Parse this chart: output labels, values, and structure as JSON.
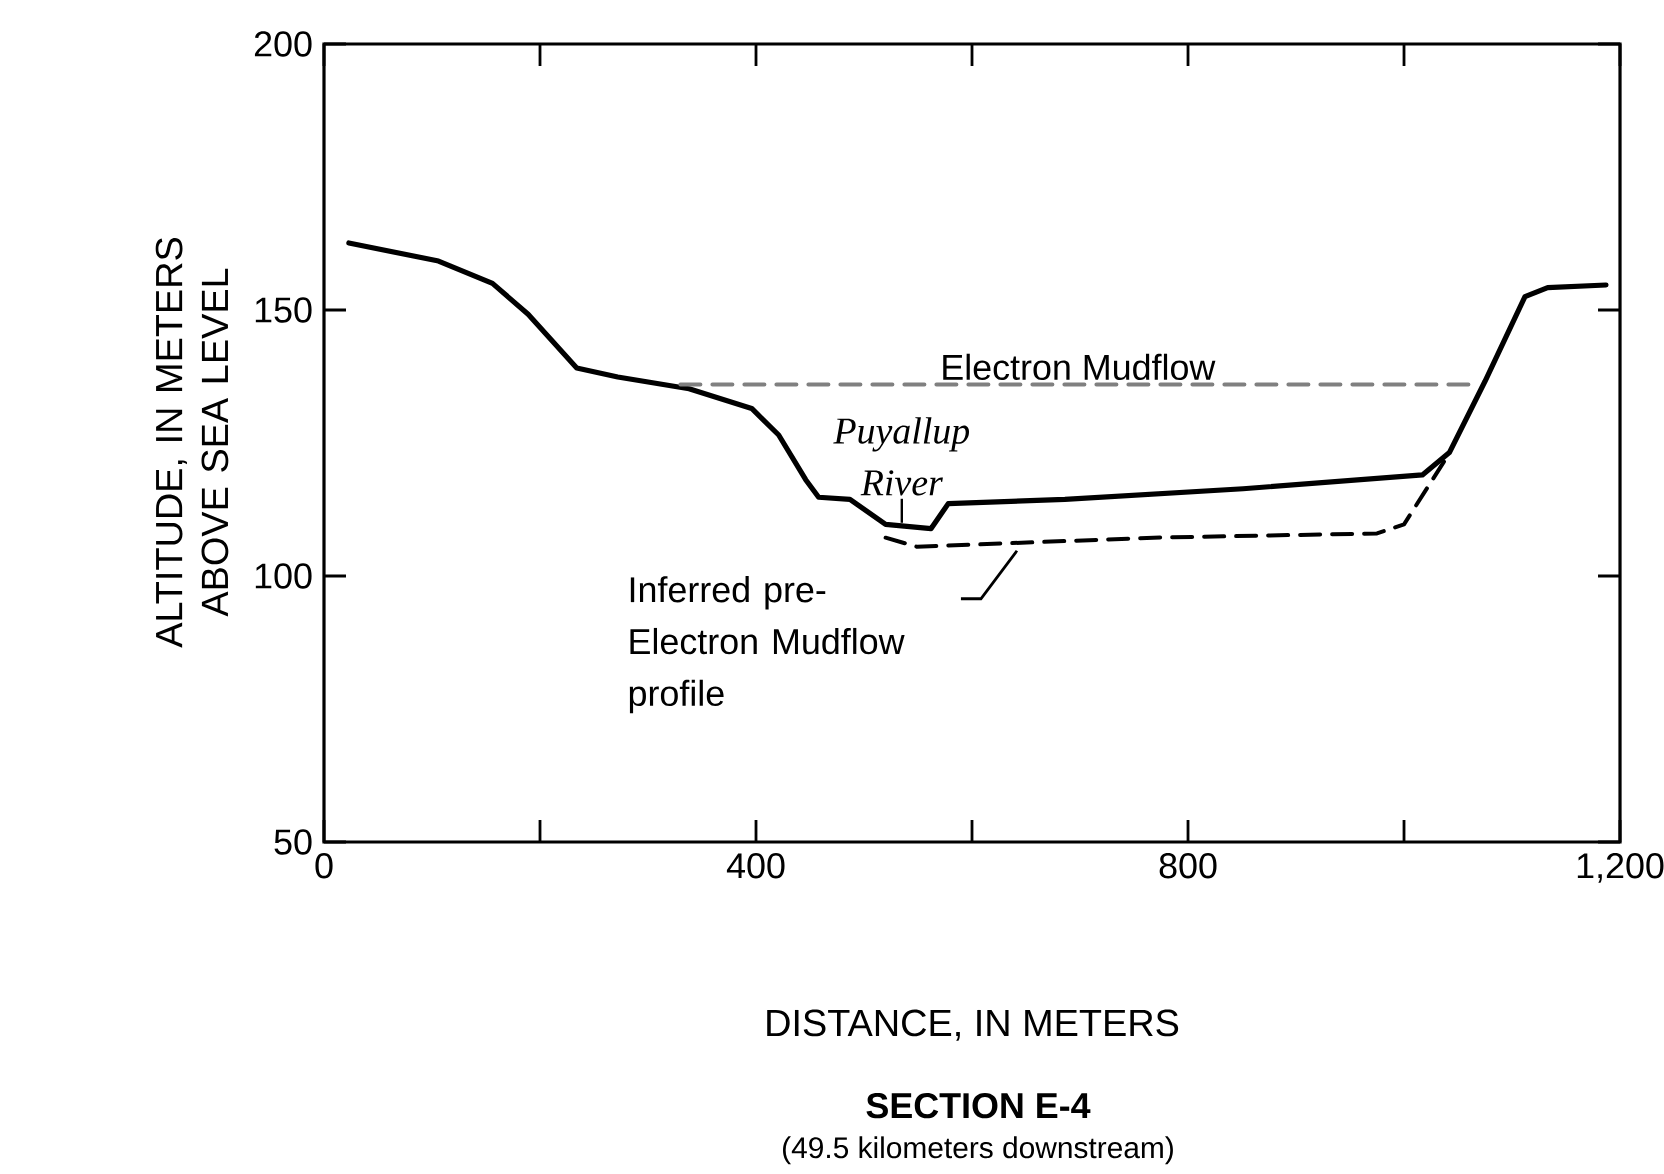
{
  "chart_data": {
    "type": "line",
    "title": "SECTION E-4",
    "subtitle": "(49.5 kilometers downstream)",
    "xlabel": "DISTANCE, IN METERS",
    "ylabel": "ALTITUDE, IN METERS ABOVE SEA LEVEL",
    "xlim": [
      0,
      1200
    ],
    "ylim": [
      50,
      200
    ],
    "xticks": [
      0,
      {
        "value": 200,
        "label": null
      },
      400,
      {
        "value": 600,
        "label": null
      },
      800,
      {
        "value": 1000,
        "label": null
      },
      {
        "value": 1200,
        "label": "1,200"
      }
    ],
    "yticks": [
      50,
      100,
      150,
      200
    ],
    "series": [
      {
        "color": "#000000",
        "line_style": "solid",
        "x": [
          23,
          106,
          156,
          189,
          234,
          272,
          338,
          396,
          421,
          446,
          458,
          487,
          520,
          562,
          578,
          686,
          851,
          1017,
          1042,
          1075,
          1112,
          1133,
          1187
        ],
        "values": [
          162.6,
          159.2,
          155,
          149.2,
          139.1,
          137.4,
          135.2,
          131.5,
          126.5,
          118.1,
          114.8,
          114.4,
          109.7,
          108.9,
          113.6,
          114.4,
          116.4,
          119,
          123.2,
          136.6,
          152.5,
          154.2,
          154.7
        ]
      },
      {
        "name": "Electron Mudflow",
        "color": "#808080",
        "line_style": "dashed",
        "x": [
          330,
          1066
        ],
        "values": [
          136,
          136
        ]
      },
      {
        "name": "Inferred pre-Electron Mudflow profile",
        "color": "#000000",
        "line_style": "dashed",
        "x": [
          520,
          549,
          768,
          975,
          1000,
          1037
        ],
        "values": [
          107.2,
          105.5,
          107.2,
          108,
          109.7,
          121.5
        ]
      }
    ],
    "annotations": [
      {
        "text": "Puyallup River",
        "x": 535,
        "y": 110
      }
    ]
  }
}
